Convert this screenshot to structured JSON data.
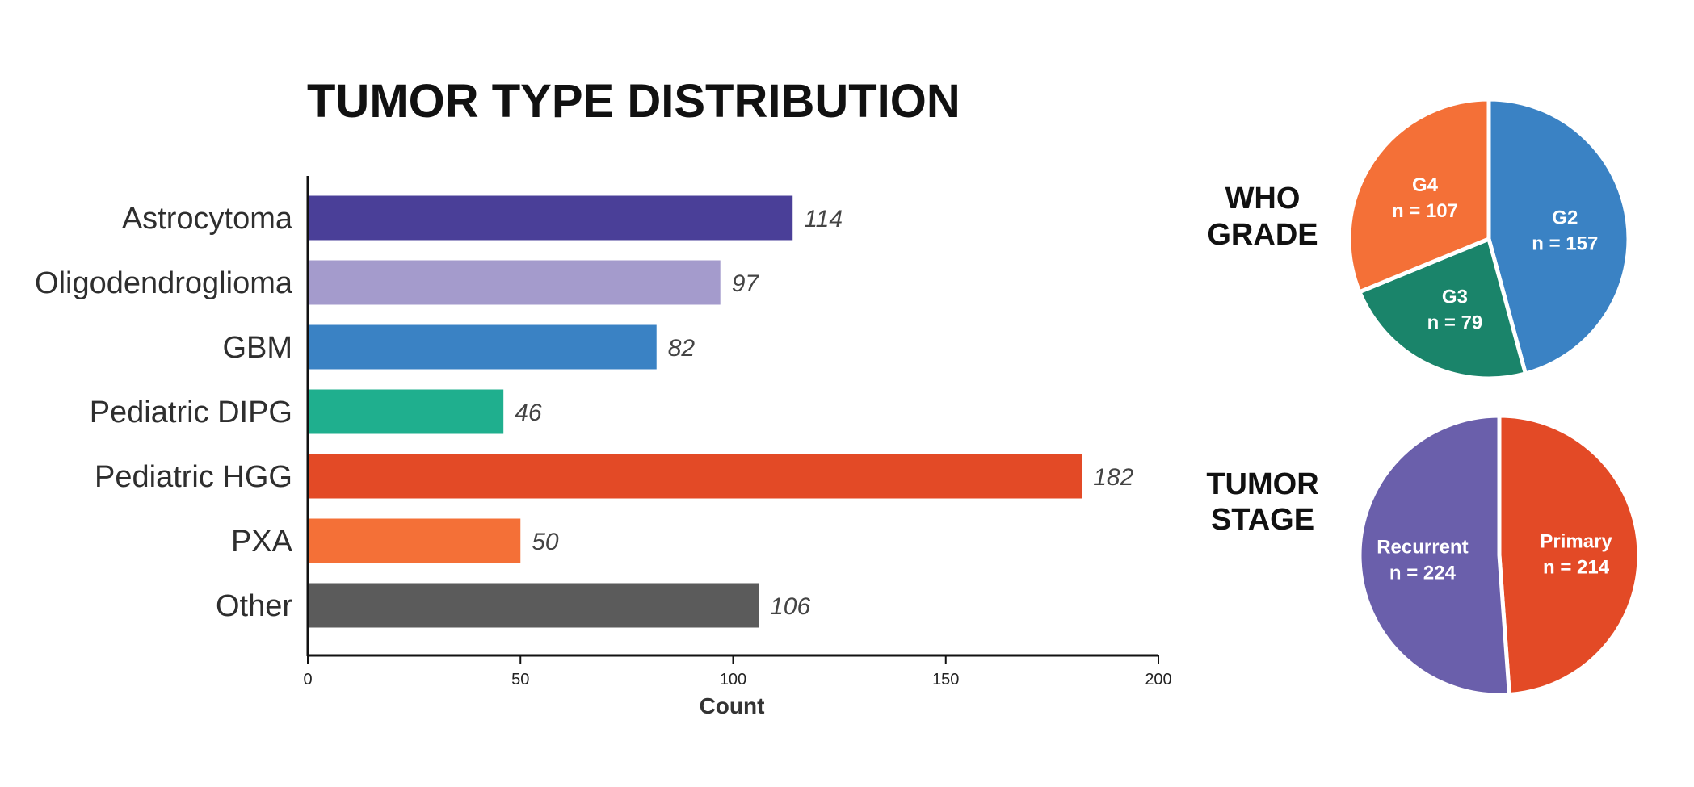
{
  "chart_data": [
    {
      "type": "bar",
      "orientation": "horizontal",
      "title": "TUMOR TYPE DISTRIBUTION",
      "xlabel": "Count",
      "ylabel": "",
      "xlim": [
        0,
        200
      ],
      "xticks": [
        "0",
        "50",
        "100",
        "150",
        "200"
      ],
      "grid": false,
      "categories": [
        "Astrocytoma",
        "Oligodendroglioma",
        "GBM",
        "Pediatric DIPG",
        "Pediatric HGG",
        "PXA",
        "Other"
      ],
      "values": [
        114,
        97,
        82,
        46,
        182,
        50,
        106
      ],
      "data_labels": [
        "114",
        "97",
        "82",
        "46",
        "182",
        "50",
        "106"
      ],
      "colors": [
        "#4a3f98",
        "#a49bcc",
        "#3a82c4",
        "#1faf8e",
        "#e34a26",
        "#f47037",
        "#5b5b5b"
      ]
    },
    {
      "type": "pie",
      "title_lines": [
        "WHO",
        "GRADE"
      ],
      "slices": [
        {
          "name": "G2",
          "value": 157,
          "label_line": "n = 157",
          "color": "#3a82c4"
        },
        {
          "name": "G3",
          "value": 79,
          "label_line": "n = 79",
          "color": "#1a846a"
        },
        {
          "name": "G4",
          "value": 107,
          "label_line": "n = 107",
          "color": "#f47037"
        }
      ]
    },
    {
      "type": "pie",
      "title_lines": [
        "TUMOR",
        "STAGE"
      ],
      "slices": [
        {
          "name": "Primary",
          "value": 214,
          "label_line": "n = 214",
          "color": "#e34a26"
        },
        {
          "name": "Recurrent",
          "value": 224,
          "label_line": "n = 224",
          "color": "#6a5fab"
        }
      ]
    }
  ]
}
